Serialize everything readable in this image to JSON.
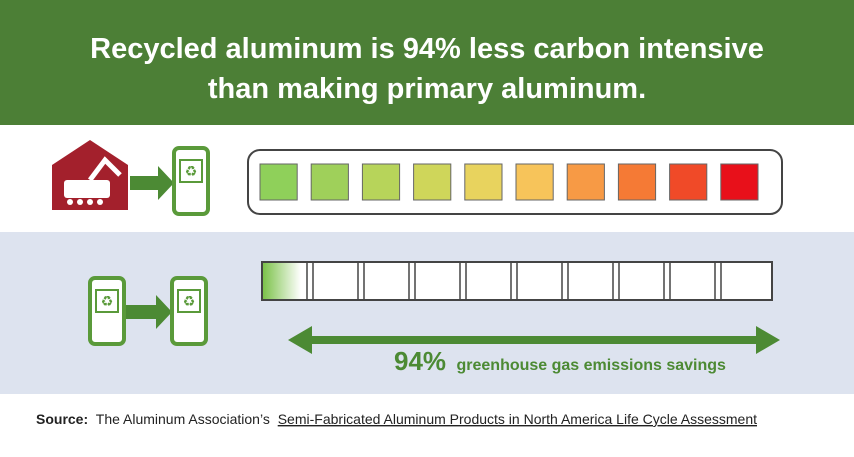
{
  "header": {
    "title_lines": [
      "Recycled aluminum is 94% less carbon intensive",
      "than making primary aluminum."
    ]
  },
  "primary_bar": {
    "segment_colors": [
      "#8fd05a",
      "#9fd05a",
      "#b7d45a",
      "#cfd65a",
      "#e8d35e",
      "#f7c45a",
      "#f79a45",
      "#f57a35",
      "#f04a28",
      "#e8101a"
    ]
  },
  "savings": {
    "percent": "94%",
    "text": "greenhouse gas emissions savings"
  },
  "source": {
    "label": "Source:",
    "publisher": "The Aluminum Association’s",
    "link": "Semi-Fabricated Aluminum Products in North America Life Cycle Assessment"
  }
}
